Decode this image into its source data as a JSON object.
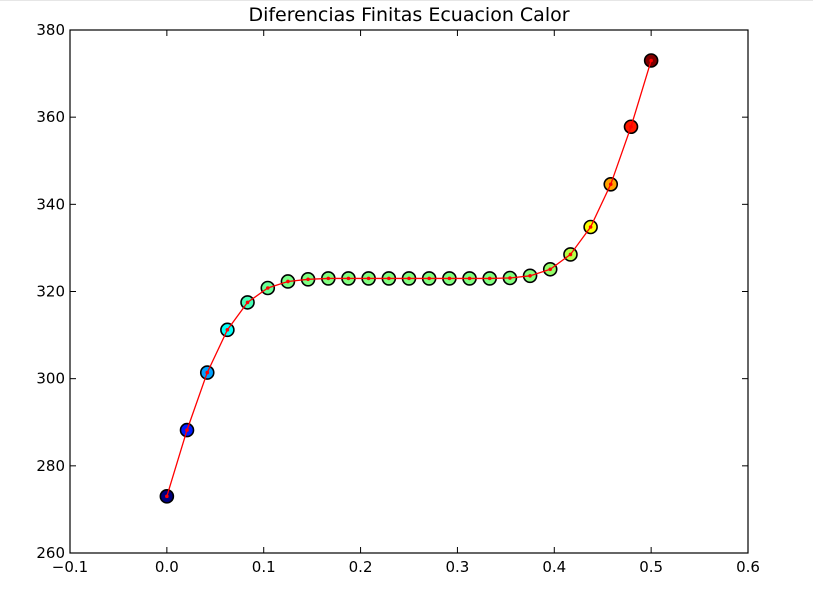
{
  "chart_data": {
    "type": "scatter",
    "title": "Diferencias Finitas Ecuacion Calor",
    "xlabel": "",
    "ylabel": "",
    "xlim": [
      -0.1,
      0.6
    ],
    "ylim": [
      260,
      380
    ],
    "grid": false,
    "x_ticks": [
      -0.1,
      0.0,
      0.1,
      0.2,
      0.3,
      0.4,
      0.5,
      0.6
    ],
    "x_tick_labels": [
      "−0.1",
      "0.0",
      "0.1",
      "0.2",
      "0.3",
      "0.4",
      "0.5",
      "0.6"
    ],
    "y_ticks": [
      260,
      280,
      300,
      320,
      340,
      360,
      380
    ],
    "y_tick_labels": [
      "260",
      "280",
      "300",
      "320",
      "340",
      "360",
      "380"
    ],
    "colormap": "jet",
    "line_color": "#ff0000",
    "marker_edge_color": "#000000",
    "x": [
      0.0,
      0.0208,
      0.0417,
      0.0625,
      0.0833,
      0.1042,
      0.125,
      0.1458,
      0.1667,
      0.1875,
      0.2083,
      0.2292,
      0.25,
      0.2708,
      0.2917,
      0.3125,
      0.3333,
      0.3542,
      0.375,
      0.3958,
      0.4167,
      0.4375,
      0.4583,
      0.4792,
      0.5
    ],
    "y": [
      273.0,
      288.2,
      301.4,
      311.2,
      317.5,
      320.8,
      322.3,
      322.8,
      323.0,
      323.0,
      323.0,
      323.0,
      323.0,
      323.0,
      323.0,
      323.0,
      323.0,
      323.1,
      323.6,
      325.1,
      328.5,
      334.8,
      344.6,
      357.8,
      373.0
    ]
  }
}
